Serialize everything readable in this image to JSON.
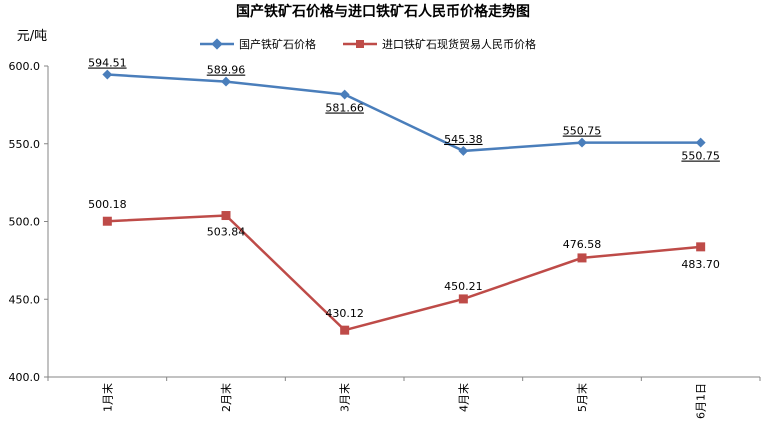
{
  "chart_data": {
    "type": "line",
    "title": "国产铁矿石价格与进口铁矿石人民币价格走势图",
    "ylabel": "元/吨",
    "categories": [
      "1月末",
      "2月末",
      "3月末",
      "4月末",
      "5月末",
      "6月1日"
    ],
    "ylim": [
      400,
      600
    ],
    "yticks": [
      "400.0",
      "450.0",
      "500.0",
      "550.0",
      "600.0"
    ],
    "legend_position": "top",
    "series": [
      {
        "name": "国产铁矿石价格",
        "color": "#4a7ebb",
        "marker": "diamond",
        "values": [
          594.51,
          589.96,
          581.66,
          545.38,
          550.75,
          550.75
        ],
        "labels": [
          "594.51",
          "589.96",
          "581.66",
          "545.38",
          "550.75",
          "550.75"
        ]
      },
      {
        "name": "进口铁矿石现货贸易人民币价格",
        "color": "#be4b48",
        "marker": "square",
        "values": [
          500.18,
          503.84,
          430.12,
          450.21,
          476.58,
          483.7
        ],
        "labels": [
          "500.18",
          "503.84",
          "430.12",
          "450.21",
          "476.58",
          "483.70"
        ]
      }
    ]
  }
}
